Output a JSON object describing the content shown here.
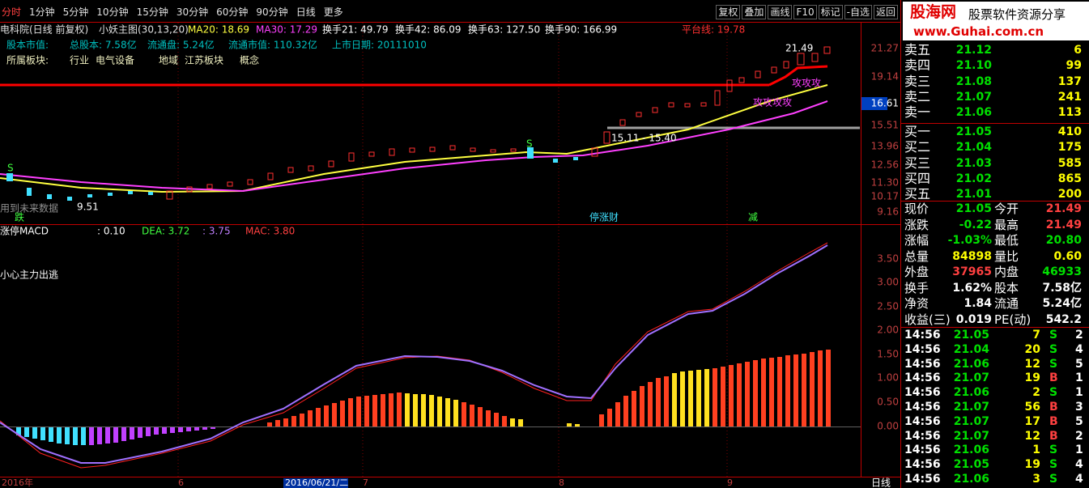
{
  "toolbar": {
    "periods": [
      "分时",
      "1分钟",
      "5分钟",
      "10分钟",
      "15分钟",
      "30分钟",
      "60分钟",
      "90分钟",
      "日线",
      "更多"
    ],
    "buttons": [
      "复权",
      "叠加",
      "画线",
      "F10",
      "标记",
      "-自选",
      "返回"
    ]
  },
  "brand": {
    "logo": "股海网",
    "slogan": "股票软件资源分享",
    "url": "www.Guhai.com.cn"
  },
  "header": {
    "title": "电科院(日线 前复权)",
    "indicator": "小妖主图(30,13,20)",
    "ma20": "MA20: 18.69",
    "ma30": "MA30: 17.29",
    "turnover": [
      "换手21: 49.79",
      "换手42: 86.09",
      "换手63: 127.50",
      "换手90: 166.99"
    ],
    "platform": "平台线: 19.78"
  },
  "info": {
    "row1": [
      "股本市值:",
      "总股本: 7.58亿",
      "流通盘: 5.24亿",
      "流通市值: 110.32亿",
      "上市日期: 20111010"
    ],
    "row2": [
      "所属板块:",
      "行业",
      "电气设备",
      "地域",
      "江苏板块",
      "概念"
    ]
  },
  "price_axis": [
    "21.27",
    "19.14",
    "16.61",
    "15.51",
    "13.96",
    "12.56",
    "11.30",
    "10.17",
    "9.16"
  ],
  "annotations": {
    "high": "21.49",
    "low": "9.51",
    "range": "15.11 - 15.40",
    "future": "用到未来数据",
    "s": "S",
    "fall": "跌",
    "event": "停涨财",
    "cut": "减",
    "attack1": "攻攻攻",
    "attack2": "攻攻攻攻"
  },
  "macd": {
    "title": "涨停MACD",
    "v1": ": 0.10",
    "dea": "DEA: 3.72",
    "v2": ": 3.75",
    "mac": "MAC: 3.80",
    "warning": "小心主力出逃",
    "axis": [
      "3.50",
      "3.00",
      "2.50",
      "2.00",
      "1.50",
      "1.00",
      "0.50",
      "0.00"
    ]
  },
  "dates": [
    "2016年",
    "6",
    "2016/06/21/二",
    "7",
    "8",
    "9"
  ],
  "period": "日线",
  "order_book": [
    [
      "卖五",
      "21.12",
      "6"
    ],
    [
      "卖四",
      "21.10",
      "99"
    ],
    [
      "卖三",
      "21.08",
      "137"
    ],
    [
      "卖二",
      "21.07",
      "241"
    ],
    [
      "卖一",
      "21.06",
      "113"
    ],
    [
      "买一",
      "21.05",
      "410"
    ],
    [
      "买二",
      "21.04",
      "175"
    ],
    [
      "买三",
      "21.03",
      "585"
    ],
    [
      "买四",
      "21.02",
      "865"
    ],
    [
      "买五",
      "21.01",
      "200"
    ]
  ],
  "quote": [
    [
      "现价",
      "21.05",
      "今开",
      "21.49"
    ],
    [
      "涨跌",
      "-0.22",
      "最高",
      "21.49"
    ],
    [
      "涨幅",
      "-1.03%",
      "最低",
      "20.80"
    ],
    [
      "总量",
      "84898",
      "量比",
      "0.60"
    ],
    [
      "外盘",
      "37965",
      "内盘",
      "46933"
    ],
    [
      "换手",
      "1.62%",
      "股本",
      "7.58亿"
    ],
    [
      "净资",
      "1.84",
      "流通",
      "5.24亿"
    ],
    [
      "收益(三)",
      "0.019",
      "PE(动)",
      "542.2"
    ]
  ],
  "ticks": [
    [
      "14:56",
      "21.05",
      "7",
      "S",
      "2"
    ],
    [
      "14:56",
      "21.04",
      "20",
      "S",
      "4"
    ],
    [
      "14:56",
      "21.06",
      "12",
      "S",
      "5"
    ],
    [
      "14:56",
      "21.07",
      "19",
      "B",
      "1"
    ],
    [
      "14:56",
      "21.06",
      "2",
      "S",
      "1"
    ],
    [
      "14:56",
      "21.07",
      "56",
      "B",
      "3"
    ],
    [
      "14:56",
      "21.07",
      "17",
      "B",
      "5"
    ],
    [
      "14:56",
      "21.07",
      "12",
      "B",
      "2"
    ],
    [
      "14:56",
      "21.06",
      "1",
      "S",
      "1"
    ],
    [
      "14:56",
      "21.05",
      "19",
      "S",
      "4"
    ],
    [
      "14:56",
      "21.06",
      "3",
      "S",
      "4"
    ]
  ]
}
